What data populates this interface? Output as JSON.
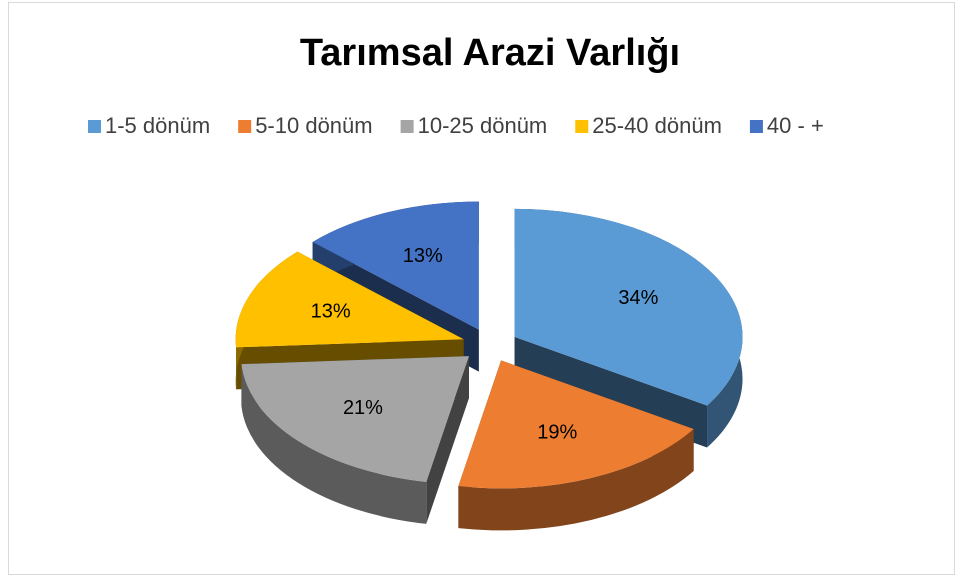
{
  "chart_data": {
    "type": "pie",
    "title": "Tarımsal Arazi Varlığı",
    "categories": [
      "1-5 dönüm",
      "5-10 dönüm",
      "10-25 dönüm",
      "25-40 dönüm",
      "40 - +"
    ],
    "values": [
      34,
      19,
      21,
      13,
      13
    ],
    "value_labels": [
      "34%",
      "19%",
      "21%",
      "13%",
      "13%"
    ],
    "colors": [
      "#5b9bd5",
      "#ed7d31",
      "#a5a5a5",
      "#ffc000",
      "#4472c4"
    ],
    "legend": "top"
  }
}
